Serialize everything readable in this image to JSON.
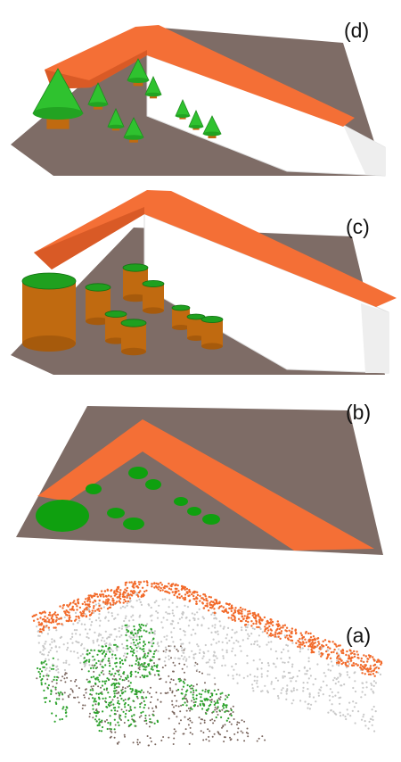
{
  "labels": {
    "d": "(d)",
    "c": "(c)",
    "b": "(b)",
    "a": "(a)"
  }
}
